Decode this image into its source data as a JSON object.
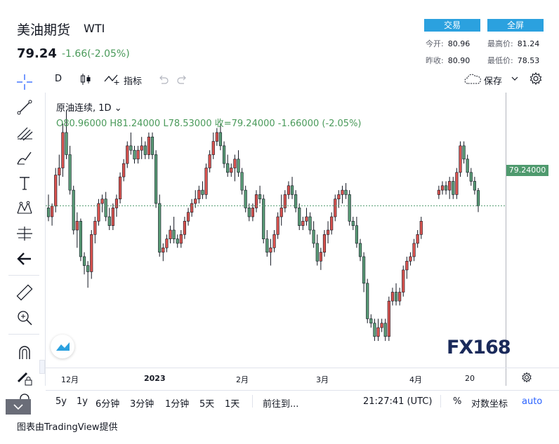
{
  "header": {
    "title": "美油期货",
    "symbol": "WTI",
    "price": "79.24",
    "change": "-1.66(-2.05%)",
    "trade_label": "交易",
    "fullscreen_label": "全屏",
    "stats": {
      "open_label": "今开:",
      "open": "80.96",
      "high_label": "最高价:",
      "high": "81.24",
      "prev_label": "昨收:",
      "prev": "80.90",
      "low_label": "最低价:",
      "low": "78.53"
    }
  },
  "toolbar": {
    "interval": "D",
    "indicators_label": "指标",
    "save_label": "保存"
  },
  "legend": {
    "line1": "原油连续, 1D",
    "line2": "O80.96000  H81.24000  L78.53000  收=79.24000  -1.66000 (-2.05%)"
  },
  "price_tag": "79.24000",
  "x_axis": {
    "ticks": [
      "12月",
      "2023",
      "2月",
      "3月",
      "4月",
      "20"
    ]
  },
  "bottom": {
    "ranges": [
      "5y",
      "1y",
      "6分钟",
      "3分钟",
      "1分钟",
      "5天",
      "1天"
    ],
    "goto_label": "前往到...",
    "time": "21:27:41 (UTC)",
    "percent_label": "%",
    "log_label": "对数坐标",
    "auto_label": "auto"
  },
  "credit": "图表由TradingView提供",
  "logo_text": "FX168",
  "colors": {
    "up": "#ef5350",
    "down": "#26a69a",
    "up_fill": "#d9534f",
    "down_fill": "#5a9c77"
  },
  "chart_data": {
    "type": "candlestick",
    "ohlc": [
      [
        79.0,
        80.5,
        77.5,
        78.0
      ],
      [
        78.0,
        79.5,
        77.0,
        79.2
      ],
      [
        79.2,
        83.5,
        78.5,
        82.7
      ],
      [
        82.7,
        85.0,
        81.5,
        83.5
      ],
      [
        83.5,
        88.5,
        82.5,
        87.5
      ],
      [
        87.5,
        90.0,
        84.5,
        85.0
      ],
      [
        85.0,
        86.0,
        80.5,
        81.0
      ],
      [
        81.0,
        81.5,
        76.0,
        76.5
      ],
      [
        76.5,
        78.5,
        74.5,
        77.5
      ],
      [
        77.5,
        77.8,
        73.0,
        73.5
      ],
      [
        73.5,
        74.0,
        71.5,
        72.5
      ],
      [
        72.5,
        73.0,
        70.0,
        71.8
      ],
      [
        71.8,
        76.5,
        71.0,
        76.0
      ],
      [
        76.0,
        78.0,
        75.0,
        77.5
      ],
      [
        77.5,
        80.0,
        77.0,
        79.5
      ],
      [
        79.5,
        80.5,
        78.5,
        80.0
      ],
      [
        80.0,
        80.8,
        77.5,
        78.0
      ],
      [
        78.0,
        79.0,
        76.5,
        77.0
      ],
      [
        77.0,
        79.5,
        76.5,
        79.0
      ],
      [
        79.0,
        80.5,
        78.0,
        80.0
      ],
      [
        80.0,
        83.0,
        79.5,
        82.5
      ],
      [
        82.5,
        84.5,
        82.0,
        84.0
      ],
      [
        84.0,
        86.5,
        83.5,
        86.0
      ],
      [
        86.0,
        87.5,
        85.0,
        85.5
      ],
      [
        85.5,
        86.0,
        84.0,
        84.5
      ],
      [
        84.5,
        86.0,
        84.0,
        85.5
      ],
      [
        85.5,
        87.0,
        84.5,
        86.0
      ],
      [
        86.0,
        86.5,
        84.5,
        85.0
      ],
      [
        85.0,
        87.5,
        84.5,
        87.0
      ],
      [
        87.0,
        87.5,
        84.5,
        85.0
      ],
      [
        85.0,
        85.5,
        79.0,
        79.5
      ],
      [
        79.5,
        80.5,
        73.5,
        74.0
      ],
      [
        74.0,
        75.0,
        73.0,
        74.5
      ],
      [
        74.5,
        76.0,
        74.0,
        75.5
      ],
      [
        75.5,
        77.0,
        75.0,
        76.5
      ],
      [
        76.5,
        78.0,
        75.0,
        75.5
      ],
      [
        75.5,
        76.0,
        74.5,
        75.0
      ],
      [
        75.0,
        76.5,
        74.5,
        76.0
      ],
      [
        76.0,
        78.0,
        75.5,
        77.5
      ],
      [
        77.5,
        79.0,
        77.0,
        78.5
      ],
      [
        78.5,
        80.0,
        78.0,
        79.5
      ],
      [
        79.5,
        81.0,
        79.0,
        80.0
      ],
      [
        80.0,
        81.5,
        79.5,
        81.0
      ],
      [
        81.0,
        82.0,
        80.0,
        80.5
      ],
      [
        80.5,
        84.0,
        80.0,
        83.5
      ],
      [
        83.5,
        85.5,
        83.0,
        85.0
      ],
      [
        85.0,
        87.5,
        84.5,
        86.5
      ],
      [
        86.5,
        88.0,
        86.0,
        87.5
      ],
      [
        87.5,
        88.5,
        85.5,
        86.0
      ],
      [
        86.0,
        86.5,
        83.5,
        84.0
      ],
      [
        84.0,
        85.0,
        82.5,
        83.0
      ],
      [
        83.0,
        84.0,
        82.5,
        83.5
      ],
      [
        83.5,
        85.0,
        82.0,
        84.5
      ],
      [
        84.5,
        85.5,
        82.5,
        83.0
      ],
      [
        83.0,
        83.5,
        80.5,
        81.0
      ],
      [
        81.0,
        81.5,
        78.5,
        79.0
      ],
      [
        79.0,
        79.5,
        77.5,
        78.0
      ],
      [
        78.0,
        79.5,
        77.5,
        79.0
      ],
      [
        79.0,
        81.0,
        78.5,
        80.5
      ],
      [
        80.5,
        81.5,
        79.5,
        80.0
      ],
      [
        80.0,
        80.5,
        75.0,
        75.5
      ],
      [
        75.5,
        76.5,
        73.5,
        74.0
      ],
      [
        74.0,
        75.5,
        72.5,
        74.5
      ],
      [
        74.5,
        76.5,
        74.0,
        76.0
      ],
      [
        76.0,
        78.5,
        75.5,
        78.0
      ],
      [
        78.0,
        80.5,
        77.0,
        79.0
      ],
      [
        79.0,
        81.0,
        78.5,
        80.5
      ],
      [
        80.5,
        82.0,
        80.0,
        81.5
      ],
      [
        81.5,
        82.5,
        80.0,
        80.5
      ],
      [
        80.5,
        81.0,
        78.5,
        79.0
      ],
      [
        79.0,
        79.5,
        76.5,
        77.0
      ],
      [
        77.0,
        78.0,
        76.5,
        77.5
      ],
      [
        77.5,
        79.0,
        77.0,
        78.0
      ],
      [
        78.0,
        78.5,
        76.0,
        76.5
      ],
      [
        76.5,
        77.5,
        74.5,
        75.0
      ],
      [
        75.0,
        76.0,
        72.5,
        73.0
      ],
      [
        73.0,
        74.5,
        72.0,
        74.0
      ],
      [
        74.0,
        76.5,
        73.5,
        76.0
      ],
      [
        76.0,
        77.5,
        75.0,
        76.5
      ],
      [
        76.5,
        78.5,
        76.0,
        78.0
      ],
      [
        78.0,
        80.5,
        77.5,
        80.0
      ],
      [
        80.0,
        81.0,
        79.0,
        80.5
      ],
      [
        80.5,
        81.5,
        79.5,
        81.0
      ],
      [
        81.0,
        81.8,
        80.0,
        80.5
      ],
      [
        80.5,
        81.0,
        77.0,
        77.5
      ],
      [
        77.5,
        78.0,
        76.5,
        77.0
      ],
      [
        77.0,
        78.0,
        74.5,
        75.0
      ],
      [
        75.0,
        75.5,
        73.0,
        73.5
      ],
      [
        73.5,
        74.0,
        69.5,
        70.5
      ],
      [
        70.5,
        71.0,
        66.0,
        66.5
      ],
      [
        66.5,
        67.0,
        65.5,
        66.0
      ],
      [
        66.0,
        66.5,
        64.0,
        64.5
      ],
      [
        64.5,
        66.5,
        64.0,
        65.5
      ],
      [
        65.5,
        66.5,
        65.0,
        66.0
      ],
      [
        66.0,
        66.5,
        64.0,
        64.5
      ],
      [
        64.5,
        69.0,
        64.0,
        68.5
      ],
      [
        68.5,
        70.0,
        68.0,
        69.5
      ],
      [
        69.5,
        70.5,
        68.0,
        68.5
      ],
      [
        68.5,
        70.0,
        68.0,
        69.5
      ],
      [
        69.5,
        72.5,
        69.0,
        72.0
      ],
      [
        72.0,
        73.5,
        71.0,
        73.0
      ],
      [
        73.0,
        74.0,
        72.5,
        73.5
      ],
      [
        73.5,
        75.5,
        73.0,
        75.0
      ],
      [
        75.0,
        76.5,
        74.5,
        76.0
      ],
      [
        76.0,
        78.0,
        75.5,
        77.5
      ],
      [
        80.5,
        81.5,
        80.0,
        81.0
      ],
      [
        81.0,
        82.0,
        80.5,
        81.5
      ],
      [
        81.5,
        82.0,
        80.5,
        81.0
      ],
      [
        81.0,
        82.5,
        80.0,
        82.0
      ],
      [
        82.0,
        82.5,
        80.0,
        80.5
      ],
      [
        80.5,
        83.5,
        80.0,
        83.0
      ],
      [
        83.0,
        86.5,
        82.5,
        86.0
      ],
      [
        86.0,
        86.5,
        84.0,
        84.5
      ],
      [
        84.5,
        85.0,
        82.5,
        83.0
      ],
      [
        83.0,
        83.5,
        81.5,
        82.0
      ],
      [
        82.0,
        82.5,
        80.5,
        81.0
      ],
      [
        80.96,
        81.24,
        78.53,
        79.24
      ]
    ],
    "last_price": 79.24
  }
}
